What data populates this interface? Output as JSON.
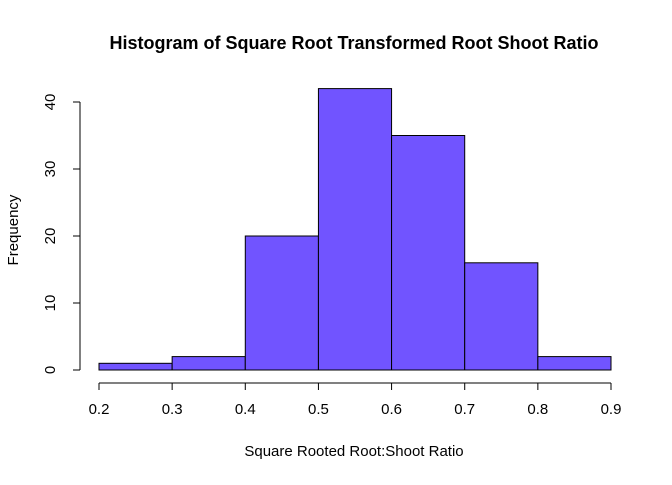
{
  "chart_data": {
    "type": "bar",
    "title": "Histogram of Square Root Transformed Root Shoot Ratio",
    "xlabel": "Square Rooted Root:Shoot Ratio",
    "ylabel": "Frequency",
    "bins": [
      {
        "x0": 0.2,
        "x1": 0.3,
        "count": 1
      },
      {
        "x0": 0.3,
        "x1": 0.4,
        "count": 2
      },
      {
        "x0": 0.4,
        "x1": 0.5,
        "count": 20
      },
      {
        "x0": 0.5,
        "x1": 0.6,
        "count": 42
      },
      {
        "x0": 0.6,
        "x1": 0.7,
        "count": 35
      },
      {
        "x0": 0.7,
        "x1": 0.8,
        "count": 16
      },
      {
        "x0": 0.8,
        "x1": 0.9,
        "count": 2
      }
    ],
    "xlim": [
      0.2,
      0.9
    ],
    "ylim": [
      0,
      42
    ],
    "x_ticks": [
      "0.2",
      "0.3",
      "0.4",
      "0.5",
      "0.6",
      "0.7",
      "0.8",
      "0.9"
    ],
    "y_ticks": [
      "0",
      "10",
      "20",
      "30",
      "40"
    ],
    "bar_color": "#7154FF",
    "grid": false,
    "legend": "none"
  }
}
